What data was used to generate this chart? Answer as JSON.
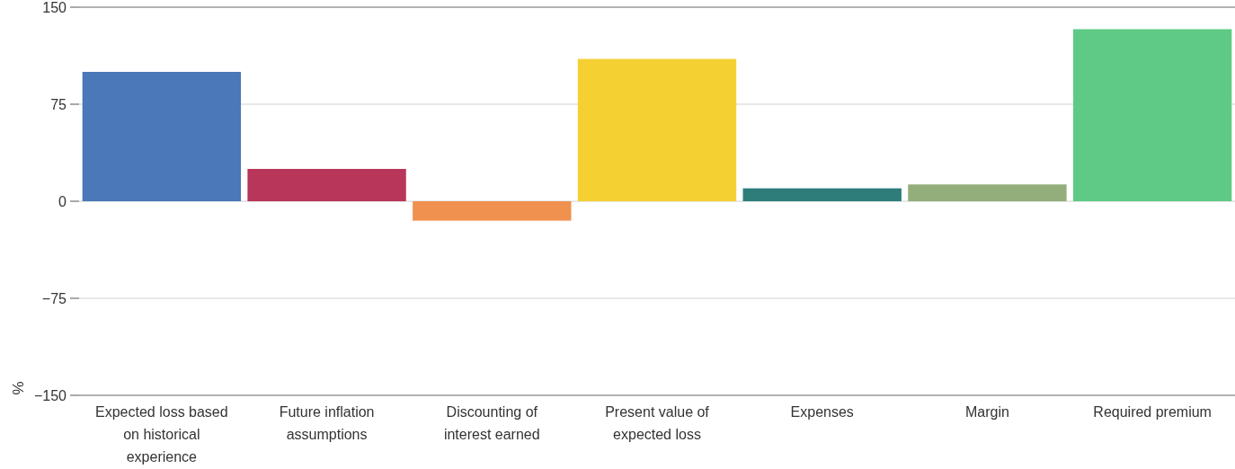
{
  "chart_data": {
    "type": "bar",
    "ylabel": "%",
    "categories": [
      "Expected loss based on historical experience",
      "Future inflation assumptions",
      "Discounting of interest earned",
      "Present value of expected loss",
      "Expenses",
      "Margin",
      "Required premium"
    ],
    "values": [
      100,
      25,
      -15,
      110,
      10,
      13,
      133
    ],
    "colors": [
      "#4a78b8",
      "#b8365a",
      "#f0914f",
      "#f5d033",
      "#2e7d7b",
      "#93ae7a",
      "#5fca85"
    ],
    "ylim": [
      -150,
      150
    ],
    "yticks": [
      -150,
      -75,
      0,
      75,
      150
    ],
    "grid": "y"
  }
}
